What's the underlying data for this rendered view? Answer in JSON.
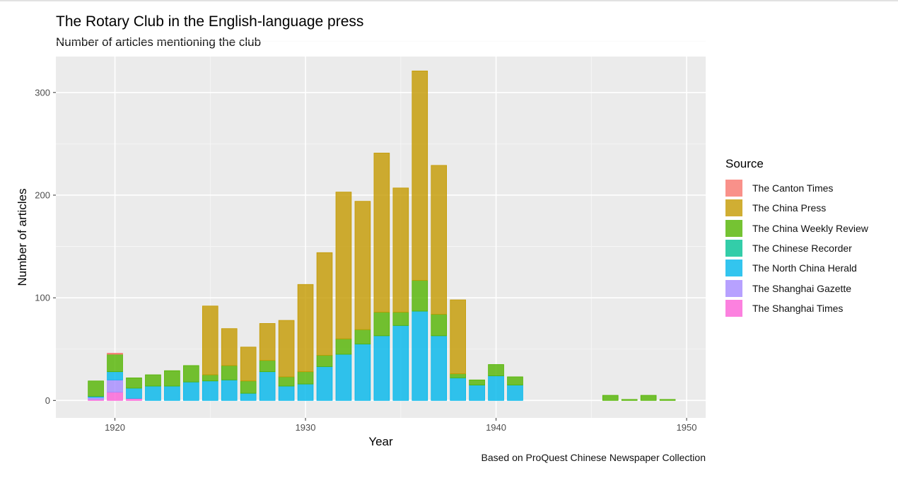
{
  "title": "The Rotary Club in the English-language press",
  "subtitle": "Number of articles mentioning the club",
  "caption": "Based on ProQuest Chinese Newspaper Collection",
  "legend_title": "Source",
  "chart_data": {
    "type": "bar",
    "stacked": true,
    "title": "The Rotary Club in the English-language press",
    "subtitle": "Number of articles mentioning the club",
    "xlabel": "Year",
    "ylabel": "Number of articles",
    "xlim": [
      1916.9,
      1951.0
    ],
    "ylim": [
      -17,
      335
    ],
    "x_ticks": [
      1920,
      1930,
      1940,
      1950
    ],
    "y_ticks": [
      0,
      100,
      200,
      300
    ],
    "grid": true,
    "background": "#ebebeb",
    "legend_position": "right",
    "x": [
      1919,
      1920,
      1921,
      1922,
      1923,
      1924,
      1925,
      1926,
      1927,
      1928,
      1929,
      1930,
      1931,
      1932,
      1933,
      1934,
      1935,
      1936,
      1937,
      1938,
      1939,
      1940,
      1941,
      1946,
      1947,
      1948,
      1949
    ],
    "series": [
      {
        "name": "The Canton Times",
        "color": "#f8766d",
        "values": [
          0,
          1,
          0,
          0,
          0,
          0,
          0,
          0,
          0,
          0,
          0,
          0,
          0,
          0,
          0,
          0,
          0,
          0,
          0,
          0,
          0,
          0,
          0,
          0,
          0,
          0,
          0
        ]
      },
      {
        "name": "The China Press",
        "color": "#c49a00",
        "values": [
          0,
          0,
          0,
          0,
          0,
          0,
          67,
          36,
          33,
          36,
          55,
          85,
          100,
          143,
          125,
          155,
          121,
          204,
          145,
          72,
          0,
          0,
          0,
          0,
          0,
          0,
          0
        ]
      },
      {
        "name": "The China Weekly Review",
        "color": "#53b400",
        "values": [
          15,
          17,
          10,
          11,
          15,
          16,
          6,
          14,
          12,
          11,
          9,
          12,
          11,
          15,
          14,
          23,
          13,
          30,
          21,
          4,
          5,
          11,
          8,
          5,
          1,
          5,
          1
        ]
      },
      {
        "name": "The Chinese Recorder",
        "color": "#00c094",
        "values": [
          0,
          0,
          0,
          0,
          0,
          0,
          0,
          0,
          0,
          0,
          0,
          0,
          0,
          0,
          0,
          0,
          0,
          0,
          0,
          0,
          0,
          0,
          0,
          0,
          0,
          0,
          0
        ]
      },
      {
        "name": "The North China Herald",
        "color": "#00b6eb",
        "values": [
          1,
          8,
          10,
          14,
          14,
          18,
          19,
          20,
          7,
          28,
          14,
          16,
          33,
          45,
          55,
          63,
          73,
          87,
          63,
          22,
          15,
          24,
          15,
          0,
          0,
          0,
          0
        ]
      },
      {
        "name": "The Shanghai Gazette",
        "color": "#a58aff",
        "values": [
          2,
          12,
          0,
          0,
          0,
          0,
          0,
          0,
          0,
          0,
          0,
          0,
          0,
          0,
          0,
          0,
          0,
          0,
          0,
          0,
          0,
          0,
          0,
          0,
          0,
          0,
          0
        ]
      },
      {
        "name": "The Shanghai Times",
        "color": "#fb61d7",
        "values": [
          1,
          8,
          2,
          0,
          0,
          0,
          0,
          0,
          0,
          0,
          0,
          0,
          0,
          0,
          0,
          0,
          0,
          0,
          0,
          0,
          0,
          0,
          0,
          0,
          0,
          0,
          0
        ]
      }
    ]
  }
}
